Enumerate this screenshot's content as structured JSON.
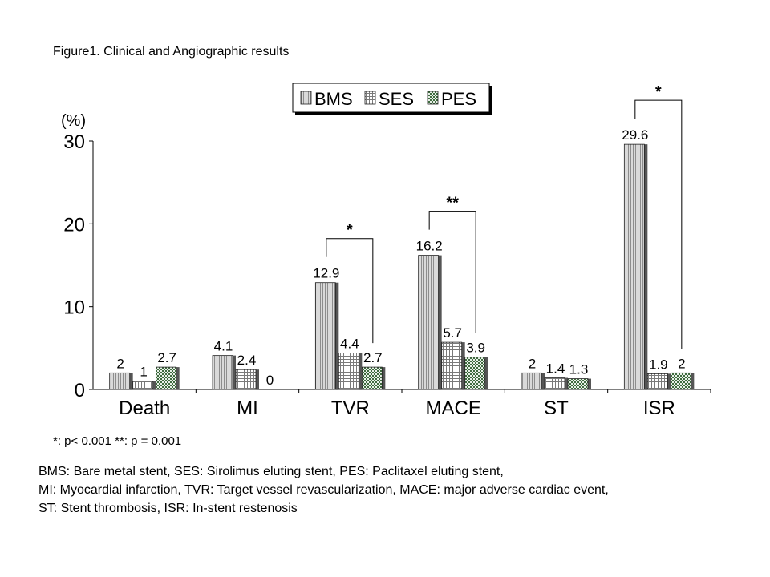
{
  "figure_caption": "Figure1. Clinical and Angiographic results",
  "significance_note": "*: p< 0.001  **: p = 0.001",
  "abbreviation_notes": [
    "BMS: Bare metal stent, SES: Sirolimus eluting stent, PES: Paclitaxel eluting stent,",
    "MI: Myocardial infarction, TVR: Target vessel revascularization, MACE: major adverse cardiac event,",
    "ST: Stent thrombosis, ISR: In-stent restenosis"
  ],
  "chart_data": {
    "type": "bar",
    "title": "",
    "ylabel": "(%)",
    "xlabel": "",
    "ylim": [
      0,
      30
    ],
    "yticks": [
      0,
      10,
      20,
      30
    ],
    "grid": false,
    "legend_position": "top-center",
    "categories": [
      "Death",
      "MI",
      "TVR",
      "MACE",
      "ST",
      "ISR"
    ],
    "series": [
      {
        "name": "BMS",
        "values": [
          2,
          4.1,
          12.9,
          16.2,
          2,
          29.6
        ],
        "labels": [
          "2",
          "4.1",
          "12.9",
          "16.2",
          "2",
          "29.6"
        ],
        "pattern": "vertical-lines",
        "color": "#c8c8c8"
      },
      {
        "name": "SES",
        "values": [
          1,
          2.4,
          4.4,
          5.7,
          1.4,
          1.9
        ],
        "labels": [
          "1",
          "2.4",
          "4.4",
          "5.7",
          "1.4",
          "1.9"
        ],
        "pattern": "grid",
        "color": "#e6e6e6"
      },
      {
        "name": "PES",
        "values": [
          2.7,
          0,
          2.7,
          3.9,
          1.3,
          2
        ],
        "labels": [
          "2.7",
          "0",
          "2.7",
          "3.9",
          "1.3",
          "2"
        ],
        "pattern": "checker",
        "color": "#8fa88f"
      }
    ],
    "annotations": [
      {
        "category": "TVR",
        "from_series": "BMS",
        "to_series": "PES",
        "label": "*"
      },
      {
        "category": "MACE",
        "from_series": "BMS",
        "to_series": "PES",
        "label": "**"
      },
      {
        "category": "ISR",
        "from_series": "BMS",
        "to_series": "PES",
        "label": "*"
      }
    ]
  }
}
